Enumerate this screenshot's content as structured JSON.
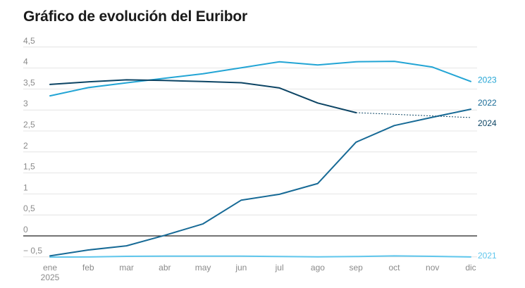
{
  "chart_data": {
    "type": "line",
    "title": "Gráfico de evolución del Euribor",
    "xlabel": "",
    "ylabel": "",
    "categories": [
      "ene",
      "feb",
      "mar",
      "abr",
      "may",
      "jun",
      "jul",
      "ago",
      "sep",
      "oct",
      "nov",
      "dic"
    ],
    "x_year_label": "2025",
    "y_ticks": [
      {
        "value": 4.5,
        "label": "4,5"
      },
      {
        "value": 4,
        "label": "4"
      },
      {
        "value": 3.5,
        "label": "3,5"
      },
      {
        "value": 3,
        "label": "3"
      },
      {
        "value": 2.5,
        "label": "2,5"
      },
      {
        "value": 2,
        "label": "2"
      },
      {
        "value": 1.5,
        "label": "1,5"
      },
      {
        "value": 1,
        "label": "1"
      },
      {
        "value": 0.5,
        "label": "0,5"
      },
      {
        "value": 0,
        "label": "0"
      },
      {
        "value": -0.5,
        "label": "− 0,5"
      }
    ],
    "ylim": [
      -0.55,
      4.7
    ],
    "grid": true,
    "series": [
      {
        "name": "2021",
        "color": "#5ec6ec",
        "values": [
          -0.505,
          -0.501,
          -0.487,
          -0.484,
          -0.481,
          -0.484,
          -0.491,
          -0.498,
          -0.492,
          -0.477,
          -0.487,
          -0.502
        ]
      },
      {
        "name": "2022",
        "color": "#176a96",
        "values": [
          -0.477,
          -0.335,
          -0.237,
          0.013,
          0.287,
          0.852,
          0.992,
          1.249,
          2.233,
          2.629,
          2.828,
          3.018
        ]
      },
      {
        "name": "2023",
        "color": "#23a5d5",
        "values": [
          3.337,
          3.534,
          3.647,
          3.757,
          3.862,
          4.007,
          4.149,
          4.073,
          4.149,
          4.16,
          4.022,
          3.679
        ]
      },
      {
        "name": "2024",
        "color": "#0c4464",
        "values": [
          3.609,
          3.671,
          3.718,
          3.703,
          3.68,
          3.65,
          3.526,
          3.166,
          2.936,
          null,
          null,
          null
        ],
        "projection": [
          {
            "index": 8,
            "value": 2.936
          },
          {
            "index": 11,
            "value": 2.82
          }
        ]
      }
    ]
  }
}
